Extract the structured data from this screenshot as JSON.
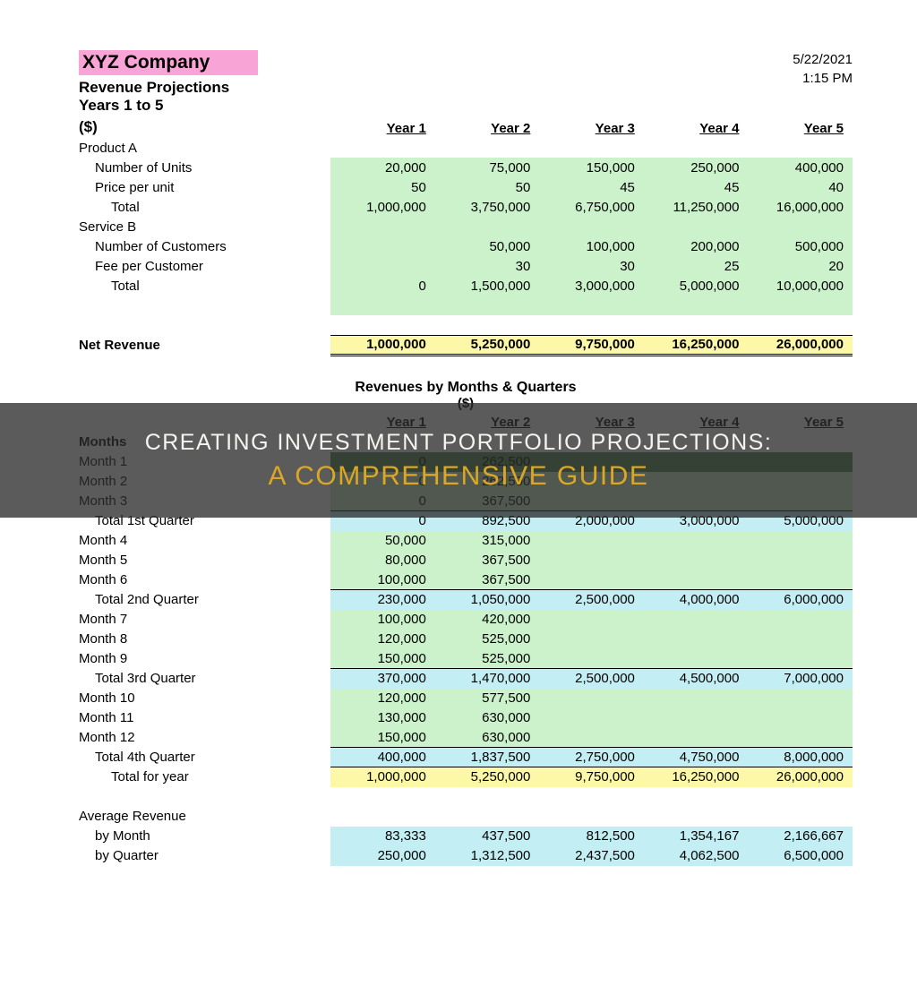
{
  "header": {
    "company": "XYZ Company",
    "sub1": "Revenue Projections",
    "sub2": "Years 1 to 5",
    "currency": "($)",
    "date": "5/22/2021",
    "time": "1:15 PM"
  },
  "years": [
    "Year 1",
    "Year 2",
    "Year 3",
    "Year 4",
    "Year 5"
  ],
  "section1": {
    "productA": {
      "label": "Product A",
      "units_label": "Number of Units",
      "units": [
        "20,000",
        "75,000",
        "150,000",
        "250,000",
        "400,000"
      ],
      "price_label": "Price per unit",
      "price": [
        "50",
        "50",
        "45",
        "45",
        "40"
      ],
      "total_label": "Total",
      "total": [
        "1,000,000",
        "3,750,000",
        "6,750,000",
        "11,250,000",
        "16,000,000"
      ]
    },
    "serviceB": {
      "label": "Service B",
      "cust_label": "Number of Customers",
      "cust": [
        "",
        "50,000",
        "100,000",
        "200,000",
        "500,000"
      ],
      "fee_label": "Fee per Customer",
      "fee": [
        "",
        "30",
        "30",
        "25",
        "20"
      ],
      "total_label": "Total",
      "total": [
        "0",
        "1,500,000",
        "3,000,000",
        "5,000,000",
        "10,000,000"
      ]
    },
    "net_label": "Net Revenue",
    "net": [
      "1,000,000",
      "5,250,000",
      "9,750,000",
      "16,250,000",
      "26,000,000"
    ]
  },
  "section2": {
    "title": "Revenues by Months & Quarters",
    "sub": "($)",
    "months_label": "Months",
    "rows": [
      {
        "label": "Month 1",
        "ind": 0,
        "vals": [
          "0",
          "262,500",
          "",
          "",
          ""
        ],
        "bg": "dgreen"
      },
      {
        "label": "Month 2",
        "ind": 0,
        "vals": [
          "0",
          "262,500",
          "",
          "",
          ""
        ],
        "bg": "green"
      },
      {
        "label": "Month 3",
        "ind": 0,
        "vals": [
          "0",
          "367,500",
          "",
          "",
          ""
        ],
        "bg": "green"
      },
      {
        "label": "Total 1st Quarter",
        "ind": 1,
        "vals": [
          "0",
          "892,500",
          "2,000,000",
          "3,000,000",
          "5,000,000"
        ],
        "bg": "cyan",
        "top": true
      },
      {
        "label": "Month 4",
        "ind": 0,
        "vals": [
          "50,000",
          "315,000",
          "",
          "",
          ""
        ],
        "bg": "green"
      },
      {
        "label": "Month 5",
        "ind": 0,
        "vals": [
          "80,000",
          "367,500",
          "",
          "",
          ""
        ],
        "bg": "green"
      },
      {
        "label": "Month 6",
        "ind": 0,
        "vals": [
          "100,000",
          "367,500",
          "",
          "",
          ""
        ],
        "bg": "green"
      },
      {
        "label": "Total 2nd Quarter",
        "ind": 1,
        "vals": [
          "230,000",
          "1,050,000",
          "2,500,000",
          "4,000,000",
          "6,000,000"
        ],
        "bg": "cyan",
        "top": true
      },
      {
        "label": "Month 7",
        "ind": 0,
        "vals": [
          "100,000",
          "420,000",
          "",
          "",
          ""
        ],
        "bg": "green"
      },
      {
        "label": "Month 8",
        "ind": 0,
        "vals": [
          "120,000",
          "525,000",
          "",
          "",
          ""
        ],
        "bg": "green"
      },
      {
        "label": "Month 9",
        "ind": 0,
        "vals": [
          "150,000",
          "525,000",
          "",
          "",
          ""
        ],
        "bg": "green"
      },
      {
        "label": "Total 3rd Quarter",
        "ind": 1,
        "vals": [
          "370,000",
          "1,470,000",
          "2,500,000",
          "4,500,000",
          "7,000,000"
        ],
        "bg": "cyan",
        "top": true
      },
      {
        "label": "Month 10",
        "ind": 0,
        "vals": [
          "120,000",
          "577,500",
          "",
          "",
          ""
        ],
        "bg": "green"
      },
      {
        "label": "Month 11",
        "ind": 0,
        "vals": [
          "130,000",
          "630,000",
          "",
          "",
          ""
        ],
        "bg": "green"
      },
      {
        "label": "Month 12",
        "ind": 0,
        "vals": [
          "150,000",
          "630,000",
          "",
          "",
          ""
        ],
        "bg": "green"
      },
      {
        "label": "Total 4th Quarter",
        "ind": 1,
        "vals": [
          "400,000",
          "1,837,500",
          "2,750,000",
          "4,750,000",
          "8,000,000"
        ],
        "bg": "cyan",
        "top": true
      },
      {
        "label": "Total for year",
        "ind": 2,
        "vals": [
          "1,000,000",
          "5,250,000",
          "9,750,000",
          "16,250,000",
          "26,000,000"
        ],
        "bg": "yellow",
        "top": true
      }
    ],
    "avg_label": "Average Revenue",
    "by_month_label": "by Month",
    "by_month": [
      "83,333",
      "437,500",
      "812,500",
      "1,354,167",
      "2,166,667"
    ],
    "by_quarter_label": "by Quarter",
    "by_quarter": [
      "250,000",
      "1,312,500",
      "2,437,500",
      "4,062,500",
      "6,500,000"
    ]
  },
  "overlay": {
    "line1": "CREATING INVESTMENT PORTFOLIO PROJECTIONS:",
    "line2": "A COMPREHENSIVE GUIDE"
  },
  "colors": {
    "pink": "#f8a4d6",
    "green": "#ccf2cc",
    "yellow": "#fdf7a8",
    "cyan": "#c3eef4",
    "dgreen": "#4e8a4e",
    "overlay_bg": "rgba(45,45,45,0.78)",
    "overlay_text": "#f5f4ef",
    "overlay_accent": "#dba726"
  }
}
